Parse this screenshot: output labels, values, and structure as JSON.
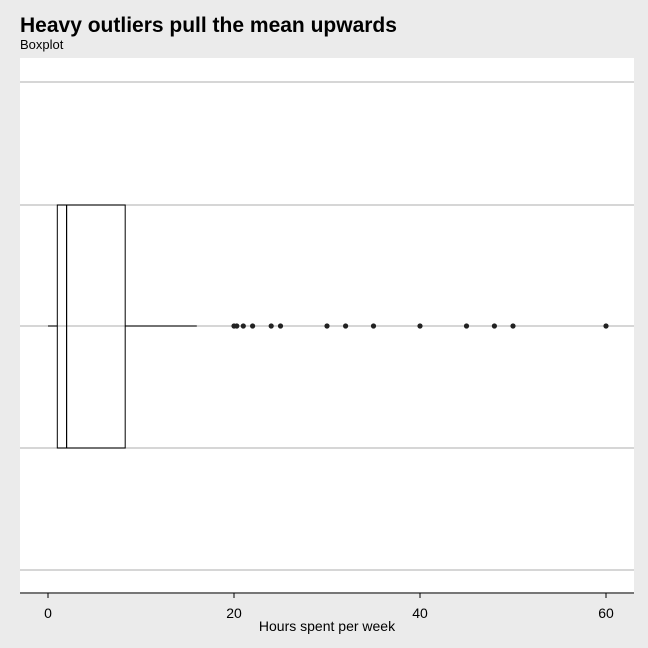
{
  "header": {
    "title": "Heavy outliers pull the mean upwards",
    "subtitle": "Boxplot"
  },
  "chart_data": {
    "type": "boxplot",
    "title": "Heavy outliers pull the mean upwards",
    "subtitle": "Boxplot",
    "xlabel": "Hours spent per week",
    "ylabel": "",
    "xlim": [
      -3,
      63
    ],
    "xticks": [
      0,
      20,
      40,
      60
    ],
    "orientation": "horizontal",
    "grid": "horizontal",
    "box": {
      "whisker_low": 0,
      "q1": 1,
      "median": 2,
      "q3": 8.3,
      "whisker_high": 16
    },
    "outliers": [
      20,
      20.3,
      21,
      22,
      24,
      25,
      30,
      32,
      35,
      40,
      45,
      48,
      50,
      60
    ],
    "colors": {
      "background": "#ebebeb",
      "panel": "#ffffff",
      "grid": "#c8c8c8",
      "stroke": "#000000",
      "point": "#222222"
    }
  }
}
